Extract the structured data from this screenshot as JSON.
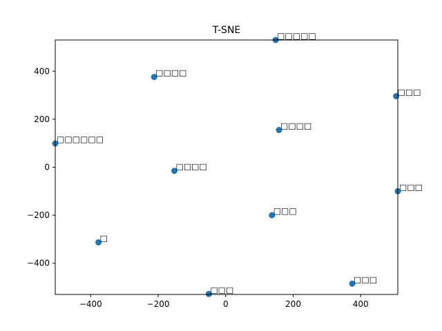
{
  "chart_data": {
    "type": "scatter",
    "title": "T-SNE",
    "xlabel": "",
    "ylabel": "",
    "xlim": [
      -505,
      510
    ],
    "ylim": [
      -530,
      530
    ],
    "xticks": [
      -400,
      -200,
      0,
      200,
      400
    ],
    "yticks": [
      -400,
      -200,
      0,
      200,
      400
    ],
    "xtick_labels": [
      "−400",
      "−200",
      "0",
      "200",
      "400"
    ],
    "ytick_labels": [
      "−400",
      "−200",
      "0",
      "200",
      "400"
    ],
    "grid": false,
    "marker_color": "#1f77b4",
    "points": [
      {
        "x": 148,
        "y": 530,
        "label": "□□□□□"
      },
      {
        "x": -212,
        "y": 376,
        "label": "□□□□"
      },
      {
        "x": 505,
        "y": 296,
        "label": "□□□"
      },
      {
        "x": 158,
        "y": 155,
        "label": "□□□□"
      },
      {
        "x": -505,
        "y": 99,
        "label": "□□□□□□"
      },
      {
        "x": -152,
        "y": -15,
        "label": "□□□□"
      },
      {
        "x": 510,
        "y": -100,
        "label": "□□□"
      },
      {
        "x": 137,
        "y": -200,
        "label": "□□□"
      },
      {
        "x": -377,
        "y": -313,
        "label": "□"
      },
      {
        "x": 375,
        "y": -485,
        "label": "□□□"
      },
      {
        "x": -50,
        "y": -528,
        "label": "□□□"
      }
    ]
  }
}
